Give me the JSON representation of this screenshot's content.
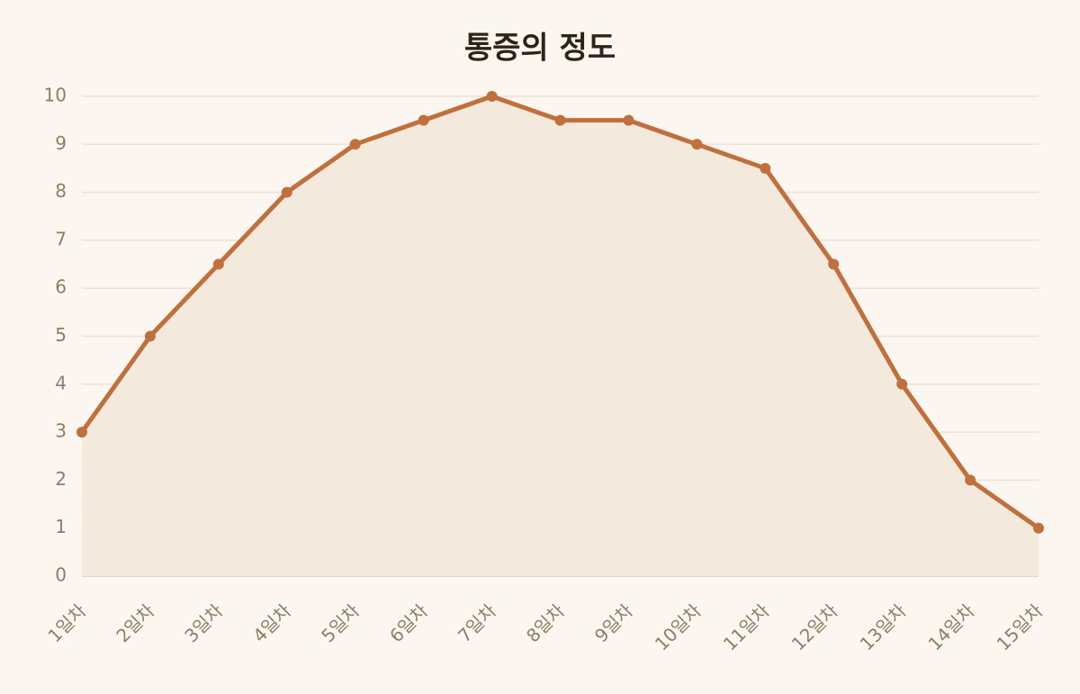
{
  "chart_data": {
    "type": "line",
    "title": "통증의 정도",
    "categories": [
      "1일차",
      "2일차",
      "3일차",
      "4일차",
      "5일차",
      "6일차",
      "7일차",
      "8일차",
      "9일차",
      "10일차",
      "11일차",
      "12일차",
      "13일차",
      "14일차",
      "15일차"
    ],
    "values": [
      3,
      5,
      6.5,
      8,
      9,
      9.5,
      10,
      9.5,
      9.5,
      9,
      8.5,
      6.5,
      4,
      2,
      1
    ],
    "color": "#c0703c",
    "fill": true,
    "ylim": [
      0,
      10
    ],
    "yticks": [
      0,
      1,
      2,
      3,
      4,
      5,
      6,
      7,
      8,
      9,
      10
    ],
    "grid": true
  }
}
